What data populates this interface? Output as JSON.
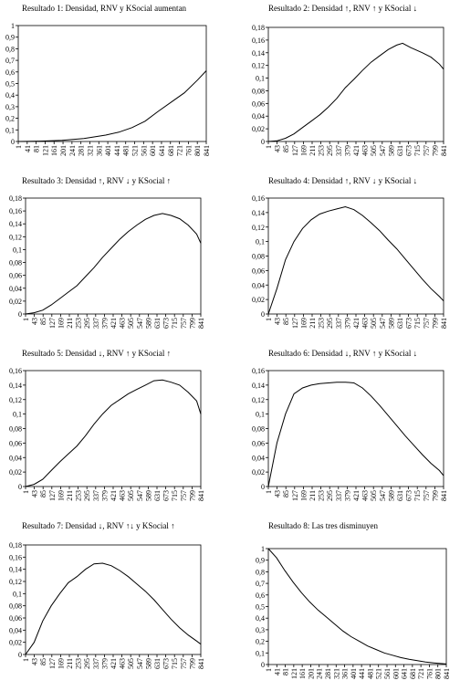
{
  "chart_data": [
    {
      "type": "line",
      "title": "Resultado 1: Densidad, RNV y KSocial aumentan",
      "ylim": [
        0,
        1
      ],
      "yticks": [
        "0",
        "0,1",
        "0,2",
        "0,3",
        "0,4",
        "0,5",
        "0,6",
        "0,7",
        "0,8",
        "0,9",
        "1"
      ],
      "x_tick_labels": [
        "1",
        "41",
        "81",
        "121",
        "161",
        "201",
        "241",
        "281",
        "321",
        "361",
        "401",
        "441",
        "481",
        "521",
        "561",
        "601",
        "641",
        "681",
        "721",
        "761",
        "801",
        "841"
      ],
      "xlim": [
        1,
        861
      ],
      "grid": false,
      "series": [
        {
          "x": [
            1,
            101,
            201,
            301,
            401,
            461,
            521,
            581,
            641,
            701,
            761,
            821,
            861
          ],
          "y": [
            0,
            0.003,
            0.01,
            0.025,
            0.055,
            0.08,
            0.12,
            0.175,
            0.26,
            0.34,
            0.42,
            0.53,
            0.61
          ]
        }
      ]
    },
    {
      "type": "line",
      "title": "Resultado 2: Densidad ↑, RNV ↑ y KSocial ↓",
      "ylim": [
        0,
        0.18
      ],
      "yticks": [
        "0",
        "0,02",
        "0,04",
        "0,06",
        "0,08",
        "0,1",
        "0,12",
        "0,14",
        "0,16",
        "0,18"
      ],
      "x_tick_labels": [
        "1",
        "43",
        "85",
        "127",
        "169",
        "211",
        "253",
        "295",
        "337",
        "379",
        "421",
        "463",
        "505",
        "547",
        "589",
        "631",
        "673",
        "715",
        "757",
        "799",
        "841"
      ],
      "xlim": [
        1,
        861
      ],
      "grid": false,
      "series": [
        {
          "x": [
            1,
            43,
            85,
            127,
            169,
            211,
            253,
            295,
            337,
            379,
            421,
            463,
            505,
            547,
            589,
            631,
            660,
            700,
            757,
            799,
            841,
            861
          ],
          "y": [
            0,
            0.001,
            0.005,
            0.012,
            0.022,
            0.032,
            0.042,
            0.054,
            0.068,
            0.085,
            0.098,
            0.112,
            0.125,
            0.135,
            0.145,
            0.152,
            0.155,
            0.148,
            0.14,
            0.133,
            0.122,
            0.114
          ]
        }
      ]
    },
    {
      "type": "line",
      "title": "Resultado 3: Densidad ↑, RNV ↓ y KSocial ↑",
      "ylim": [
        0,
        0.18
      ],
      "yticks": [
        "0",
        "0,02",
        "0,04",
        "0,06",
        "0,08",
        "0,1",
        "0,12",
        "0,14",
        "0,16",
        "0,18"
      ],
      "x_tick_labels": [
        "1",
        "43",
        "85",
        "127",
        "169",
        "211",
        "253",
        "295",
        "337",
        "379",
        "421",
        "463",
        "505",
        "547",
        "589",
        "631",
        "673",
        "715",
        "757",
        "799",
        "841"
      ],
      "xlim": [
        1,
        861
      ],
      "grid": false,
      "series": [
        {
          "x": [
            1,
            43,
            85,
            127,
            169,
            211,
            253,
            295,
            337,
            379,
            421,
            463,
            505,
            547,
            589,
            631,
            673,
            715,
            757,
            799,
            841,
            861
          ],
          "y": [
            0,
            0.002,
            0.006,
            0.014,
            0.024,
            0.034,
            0.044,
            0.058,
            0.072,
            0.088,
            0.102,
            0.116,
            0.128,
            0.138,
            0.147,
            0.153,
            0.156,
            0.153,
            0.148,
            0.138,
            0.124,
            0.11
          ]
        }
      ]
    },
    {
      "type": "line",
      "title": "Resultado 4: Densidad ↑, RNV ↓ y KSocial ↓",
      "ylim": [
        0,
        0.16
      ],
      "yticks": [
        "0",
        "0,02",
        "0,04",
        "0,06",
        "0,08",
        "0,1",
        "0,12",
        "0,14",
        "0,16"
      ],
      "x_tick_labels": [
        "1",
        "43",
        "85",
        "127",
        "169",
        "211",
        "253",
        "295",
        "337",
        "379",
        "421",
        "463",
        "505",
        "547",
        "589",
        "631",
        "673",
        "715",
        "757",
        "799",
        "841"
      ],
      "xlim": [
        1,
        861
      ],
      "grid": false,
      "series": [
        {
          "x": [
            1,
            43,
            85,
            127,
            169,
            211,
            253,
            295,
            337,
            379,
            421,
            463,
            505,
            547,
            589,
            631,
            673,
            715,
            757,
            799,
            841,
            861
          ],
          "y": [
            0,
            0.035,
            0.075,
            0.1,
            0.118,
            0.13,
            0.138,
            0.142,
            0.145,
            0.148,
            0.144,
            0.136,
            0.126,
            0.115,
            0.102,
            0.09,
            0.076,
            0.062,
            0.048,
            0.035,
            0.024,
            0.018
          ]
        }
      ]
    },
    {
      "type": "line",
      "title": "Resultado 5: Densidad ↓, RNV ↑ y KSocial ↑",
      "ylim": [
        0,
        0.16
      ],
      "yticks": [
        "0",
        "0,02",
        "0,04",
        "0,06",
        "0,08",
        "0,1",
        "0,12",
        "0,14",
        "0,16"
      ],
      "x_tick_labels": [
        "1",
        "43",
        "85",
        "127",
        "169",
        "211",
        "253",
        "295",
        "337",
        "379",
        "421",
        "463",
        "505",
        "547",
        "589",
        "631",
        "673",
        "715",
        "757",
        "799",
        "841"
      ],
      "xlim": [
        1,
        861
      ],
      "grid": false,
      "series": [
        {
          "x": [
            1,
            43,
            85,
            127,
            169,
            211,
            253,
            295,
            337,
            379,
            421,
            463,
            505,
            547,
            589,
            631,
            673,
            715,
            757,
            799,
            841,
            861
          ],
          "y": [
            0,
            0.003,
            0.01,
            0.022,
            0.034,
            0.045,
            0.056,
            0.07,
            0.086,
            0.1,
            0.112,
            0.12,
            0.128,
            0.134,
            0.14,
            0.146,
            0.147,
            0.144,
            0.14,
            0.13,
            0.118,
            0.1
          ]
        }
      ]
    },
    {
      "type": "line",
      "title": "Resultado 6: Densidad ↓, RNV ↑ y KSocial ↓",
      "ylim": [
        0,
        0.16
      ],
      "yticks": [
        "0",
        "0,02",
        "0,04",
        "0,06",
        "0,08",
        "0,1",
        "0,12",
        "0,14",
        "0,16"
      ],
      "x_tick_labels": [
        "1",
        "43",
        "85",
        "127",
        "169",
        "211",
        "253",
        "295",
        "337",
        "379",
        "421",
        "463",
        "505",
        "547",
        "589",
        "631",
        "673",
        "715",
        "757",
        "799",
        "841"
      ],
      "xlim": [
        1,
        861
      ],
      "grid": false,
      "series": [
        {
          "x": [
            1,
            43,
            85,
            127,
            169,
            211,
            253,
            295,
            337,
            379,
            421,
            463,
            505,
            547,
            589,
            631,
            673,
            715,
            757,
            799,
            841,
            861
          ],
          "y": [
            0,
            0.06,
            0.1,
            0.128,
            0.136,
            0.14,
            0.142,
            0.143,
            0.144,
            0.144,
            0.143,
            0.136,
            0.125,
            0.112,
            0.098,
            0.084,
            0.07,
            0.057,
            0.044,
            0.032,
            0.022,
            0.015
          ]
        }
      ]
    },
    {
      "type": "line",
      "title": "Resultado 7: Densidad ↓, RNV ↑↓ y KSocial ↑",
      "ylim": [
        0,
        0.18
      ],
      "yticks": [
        "0",
        "0,02",
        "0,04",
        "0,06",
        "0,08",
        "0,1",
        "0,12",
        "0,14",
        "0,16",
        "0,18"
      ],
      "x_tick_labels": [
        "1",
        "43",
        "85",
        "127",
        "169",
        "211",
        "253",
        "295",
        "337",
        "379",
        "421",
        "463",
        "505",
        "547",
        "589",
        "631",
        "673",
        "715",
        "757",
        "799",
        "841"
      ],
      "xlim": [
        1,
        861
      ],
      "grid": false,
      "series": [
        {
          "x": [
            1,
            43,
            85,
            127,
            169,
            211,
            253,
            295,
            337,
            379,
            421,
            463,
            505,
            547,
            589,
            631,
            673,
            715,
            757,
            799,
            841,
            861
          ],
          "y": [
            0,
            0.02,
            0.055,
            0.08,
            0.1,
            0.118,
            0.128,
            0.14,
            0.149,
            0.15,
            0.146,
            0.138,
            0.128,
            0.116,
            0.104,
            0.09,
            0.074,
            0.058,
            0.044,
            0.032,
            0.022,
            0.017
          ]
        }
      ]
    },
    {
      "type": "line",
      "title": "Resultado 8: Las tres disminuyen",
      "ylim": [
        0,
        1
      ],
      "yticks": [
        "0",
        "0,1",
        "0,2",
        "0,3",
        "0,4",
        "0,5",
        "0,6",
        "0,7",
        "0,8",
        "0,9",
        "1"
      ],
      "x_tick_labels": [
        "1",
        "41",
        "81",
        "121",
        "161",
        "201",
        "241",
        "281",
        "321",
        "361",
        "401",
        "441",
        "481",
        "521",
        "561",
        "601",
        "641",
        "681",
        "721",
        "761",
        "801",
        "841"
      ],
      "xlim": [
        1,
        861
      ],
      "grid": false,
      "series": [
        {
          "x": [
            1,
            41,
            81,
            121,
            161,
            201,
            241,
            281,
            321,
            361,
            401,
            441,
            481,
            521,
            561,
            601,
            641,
            681,
            721,
            761,
            801,
            841,
            861
          ],
          "y": [
            1,
            0.92,
            0.81,
            0.71,
            0.62,
            0.54,
            0.47,
            0.41,
            0.35,
            0.29,
            0.24,
            0.2,
            0.16,
            0.13,
            0.1,
            0.08,
            0.06,
            0.045,
            0.033,
            0.022,
            0.014,
            0.008,
            0.005
          ]
        }
      ]
    }
  ]
}
